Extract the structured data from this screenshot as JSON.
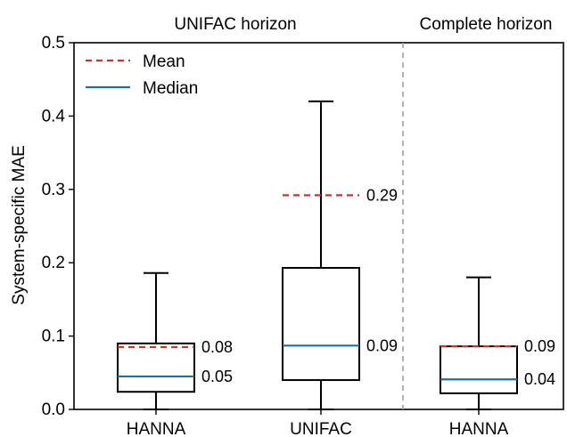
{
  "chart_data": {
    "type": "boxplot",
    "ylabel": "System-specific MAE",
    "ylim": [
      0,
      0.5
    ],
    "yticks": [
      "0.0",
      "0.1",
      "0.2",
      "0.3",
      "0.4",
      "0.5"
    ],
    "panels": [
      {
        "title": "UNIFAC horizon",
        "categories": [
          "HANNA",
          "UNIFAC"
        ]
      },
      {
        "title": "Complete horizon",
        "categories": [
          "HANNA"
        ]
      }
    ],
    "legend": {
      "placement": "top-left",
      "mean_label": "Mean",
      "median_label": "Median"
    },
    "colors": {
      "mean": "#c0392b",
      "median": "#1f6f9a",
      "separator": "#9e9e9e"
    },
    "boxes": [
      {
        "category": "HANNA",
        "panel": "UNIFAC horizon",
        "whisker_low": 0.0,
        "q1": 0.024,
        "median": 0.045,
        "mean": 0.085,
        "q3": 0.09,
        "whisker_high": 0.186,
        "median_label": "0.05",
        "mean_label": "0.08"
      },
      {
        "category": "UNIFAC",
        "panel": "UNIFAC horizon",
        "whisker_low": 0.0,
        "q1": 0.04,
        "median": 0.087,
        "mean": 0.292,
        "q3": 0.193,
        "whisker_high": 0.42,
        "median_label": "0.09",
        "mean_label": "0.29"
      },
      {
        "category": "HANNA",
        "panel": "Complete horizon",
        "whisker_low": 0.0,
        "q1": 0.022,
        "median": 0.041,
        "mean": 0.086,
        "q3": 0.086,
        "whisker_high": 0.18,
        "median_label": "0.04",
        "mean_label": "0.09"
      }
    ]
  }
}
